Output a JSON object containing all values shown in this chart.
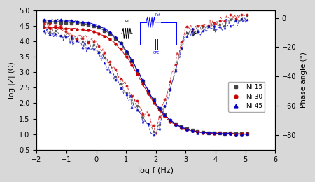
{
  "xlabel": "log f (Hz)",
  "ylabel_left": "log |Z| (Ω)",
  "ylabel_right": "Phase angle (°)",
  "xlim": [
    -2,
    6
  ],
  "ylim_left": [
    0.5,
    5.0
  ],
  "ylim_right": [
    -90,
    5
  ],
  "yticks_left": [
    0.5,
    1.0,
    1.5,
    2.0,
    2.5,
    3.0,
    3.5,
    4.0,
    4.5,
    5.0
  ],
  "yticks_right": [
    0,
    -20,
    -40,
    -60,
    -80
  ],
  "xticks": [
    -2,
    -1,
    0,
    1,
    2,
    3,
    4,
    5,
    6
  ],
  "colors": {
    "Ni15": "#444444",
    "Ni30": "#cc0000",
    "Ni45": "#0000cc"
  },
  "bg_color": "#d8d8d8",
  "plot_bg": "#ffffff"
}
